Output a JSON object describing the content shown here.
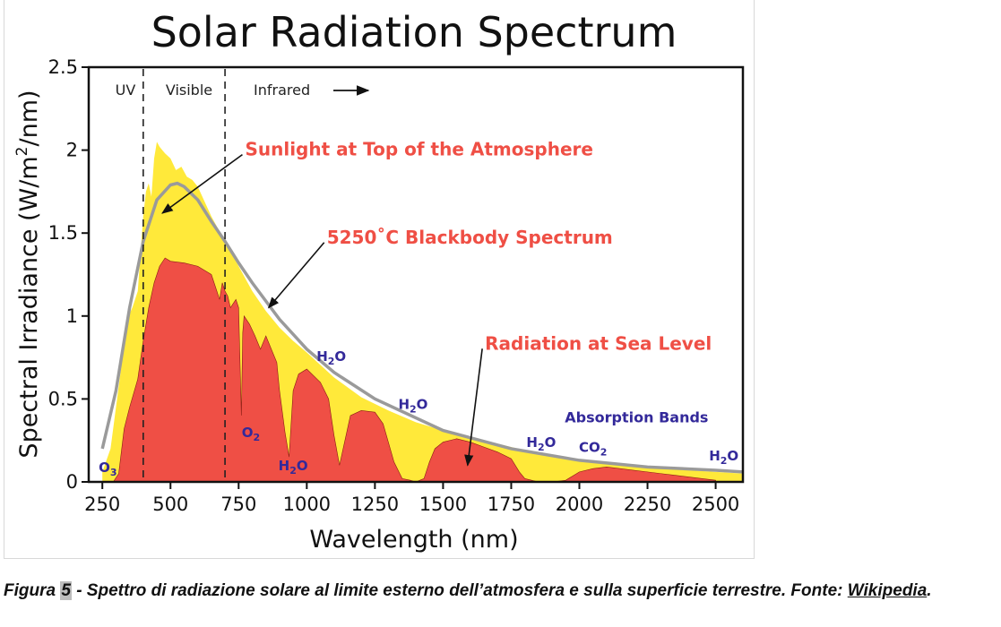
{
  "chart_data": {
    "type": "area",
    "title": "Solar Radiation Spectrum",
    "xlabel": "Wavelength (nm)",
    "ylabel_main": "Spectral Irradiance (W/m",
    "ylabel_sup": "2",
    "ylabel_end": "/nm)",
    "xlim": [
      200,
      2600
    ],
    "ylim": [
      0,
      2.5
    ],
    "x_ticks": [
      250,
      500,
      750,
      1000,
      1250,
      1500,
      1750,
      2000,
      2250,
      2500
    ],
    "y_ticks": [
      {
        "value": 0,
        "label": "0"
      },
      {
        "value": 0.5,
        "label": "0.5"
      },
      {
        "value": 1,
        "label": "1"
      },
      {
        "value": 1.5,
        "label": "1.5"
      },
      {
        "value": 2,
        "label": "2"
      },
      {
        "value": 2.5,
        "label": "2.5"
      }
    ],
    "region_dividers": [
      400,
      700
    ],
    "regions": {
      "uv": "UV",
      "visible": "Visible",
      "infrared": "Infrared"
    },
    "colors": {
      "top_of_atmosphere": "#ffe93a",
      "sea_level": "#ef4f45",
      "blackbody": "#9a9a9a",
      "annotation": "#ef4f45",
      "absorption": "#33299a"
    },
    "series": [
      {
        "key": "top_of_atmosphere",
        "x": [
          250,
          280,
          300,
          320,
          340,
          360,
          380,
          400,
          410,
          420,
          430,
          440,
          450,
          460,
          470,
          480,
          500,
          520,
          540,
          560,
          580,
          600,
          650,
          700,
          750,
          800,
          850,
          900,
          950,
          1000,
          1100,
          1200,
          1300,
          1400,
          1500,
          1600,
          1700,
          1800,
          1900,
          2000,
          2100,
          2200,
          2300,
          2400,
          2500,
          2600
        ],
        "y": [
          0.06,
          0.2,
          0.45,
          0.7,
          0.98,
          1.05,
          1.15,
          1.6,
          1.75,
          1.8,
          1.72,
          1.95,
          2.05,
          2.02,
          2.0,
          1.98,
          1.95,
          1.88,
          1.9,
          1.84,
          1.82,
          1.78,
          1.6,
          1.45,
          1.3,
          1.15,
          1.03,
          0.93,
          0.85,
          0.78,
          0.63,
          0.51,
          0.43,
          0.36,
          0.31,
          0.26,
          0.23,
          0.19,
          0.16,
          0.13,
          0.11,
          0.09,
          0.08,
          0.07,
          0.06,
          0.05
        ]
      },
      {
        "key": "blackbody",
        "label": "5250°C Blackbody Spectrum",
        "x": [
          250,
          300,
          350,
          400,
          450,
          500,
          525,
          550,
          600,
          650,
          700,
          750,
          800,
          900,
          1000,
          1100,
          1250,
          1500,
          1750,
          2000,
          2250,
          2500,
          2600
        ],
        "y": [
          0.2,
          0.55,
          1.05,
          1.45,
          1.7,
          1.79,
          1.8,
          1.78,
          1.7,
          1.57,
          1.45,
          1.32,
          1.2,
          0.98,
          0.8,
          0.66,
          0.5,
          0.31,
          0.2,
          0.13,
          0.09,
          0.07,
          0.06
        ]
      },
      {
        "key": "sea_level",
        "label": "Radiation at Sea Level",
        "x": [
          290,
          310,
          330,
          350,
          380,
          400,
          420,
          440,
          460,
          480,
          500,
          550,
          600,
          650,
          680,
          690,
          700,
          710,
          720,
          740,
          750,
          760,
          765,
          770,
          790,
          810,
          830,
          850,
          870,
          890,
          900,
          920,
          935,
          950,
          970,
          1000,
          1050,
          1080,
          1100,
          1120,
          1140,
          1160,
          1200,
          1250,
          1280,
          1320,
          1350,
          1380,
          1400,
          1430,
          1450,
          1470,
          1500,
          1550,
          1600,
          1650,
          1700,
          1750,
          1780,
          1800,
          1850,
          1900,
          1950,
          1980,
          2000,
          2050,
          2100,
          2150,
          2200,
          2250,
          2300,
          2350,
          2400,
          2450,
          2500
        ],
        "y": [
          0,
          0.05,
          0.32,
          0.45,
          0.62,
          0.85,
          1.05,
          1.2,
          1.3,
          1.35,
          1.33,
          1.32,
          1.3,
          1.25,
          1.1,
          1.2,
          1.15,
          1.12,
          1.05,
          1.1,
          1.05,
          0.4,
          0.9,
          1.0,
          0.95,
          0.88,
          0.8,
          0.88,
          0.8,
          0.72,
          0.55,
          0.3,
          0.15,
          0.55,
          0.65,
          0.68,
          0.6,
          0.5,
          0.28,
          0.1,
          0.25,
          0.4,
          0.43,
          0.42,
          0.35,
          0.12,
          0.02,
          0.01,
          0,
          0.02,
          0.12,
          0.2,
          0.24,
          0.26,
          0.24,
          0.21,
          0.18,
          0.14,
          0.06,
          0.02,
          0,
          0,
          0.01,
          0.04,
          0.06,
          0.08,
          0.09,
          0.08,
          0.07,
          0.06,
          0.05,
          0.04,
          0.03,
          0.02,
          0.01
        ]
      }
    ],
    "annotations": [
      {
        "key": "sunlight",
        "text": "Sunlight at Top of the Atmosphere",
        "anchor_x": 470,
        "anchor_y": 1.62,
        "label_x": 790,
        "label_y": 2.0
      },
      {
        "key": "blackbody",
        "text": "5250˚C Blackbody Spectrum",
        "anchor_x": 860,
        "anchor_y": 1.05,
        "label_x": 1090,
        "label_y": 1.47
      },
      {
        "key": "sea-level",
        "text": "Radiation at Sea Level",
        "anchor_x": 1590,
        "anchor_y": 0.1,
        "label_x": 1670,
        "label_y": 0.83
      }
    ],
    "absorption_labels": [
      {
        "main": "O",
        "sub": "3",
        "x": 270,
        "y": 0.06
      },
      {
        "main": "O",
        "sub": "2",
        "x": 795,
        "y": 0.27
      },
      {
        "main": "H",
        "sub": "2",
        "tail": "O",
        "x": 950,
        "y": 0.07
      },
      {
        "main": "H",
        "sub": "2",
        "tail": "O",
        "x": 1090,
        "y": 0.73
      },
      {
        "main": "H",
        "sub": "2",
        "tail": "O",
        "x": 1390,
        "y": 0.44
      },
      {
        "main": "H",
        "sub": "2",
        "tail": "O",
        "x": 1860,
        "y": 0.21
      },
      {
        "main": "CO",
        "sub": "2",
        "x": 2050,
        "y": 0.18
      },
      {
        "main": "H",
        "sub": "2",
        "tail": "O",
        "x": 2530,
        "y": 0.13
      }
    ],
    "absorption_title": "Absorption Bands",
    "absorption_title_pos": {
      "x": 2210,
      "y": 0.36
    }
  },
  "caption": {
    "prefix": "Figura ",
    "number": "5",
    "text": " - Spettro di radiazione solare al limite esterno dell’atmosfera e sulla superficie terrestre. Fonte: ",
    "link": "Wikipedia",
    "suffix": "."
  }
}
